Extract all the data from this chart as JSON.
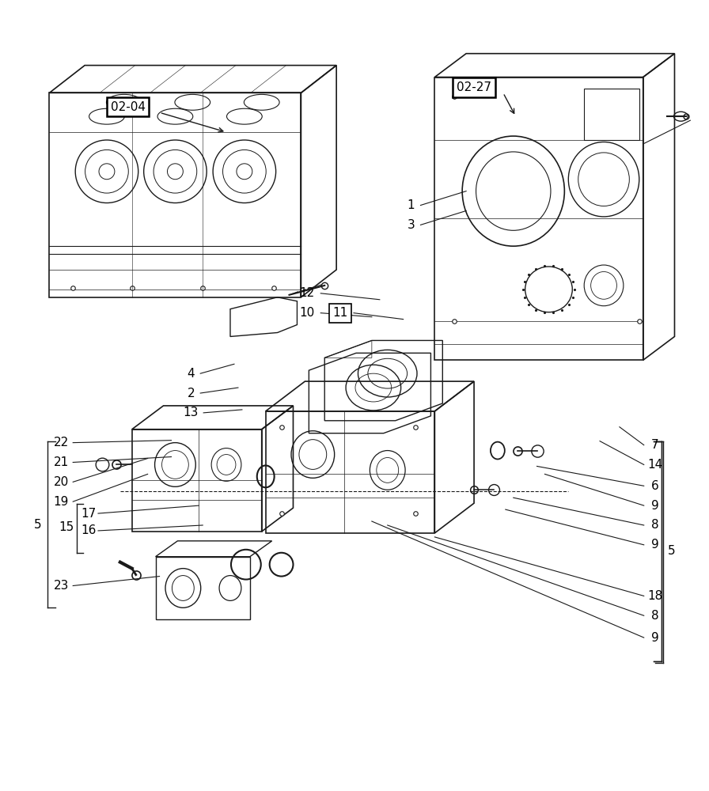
{
  "bg_color": "#ffffff",
  "line_color": "#1a1a1a",
  "figure_width": 8.96,
  "figure_height": 10.0,
  "dpi": 100,
  "font_size": 11
}
